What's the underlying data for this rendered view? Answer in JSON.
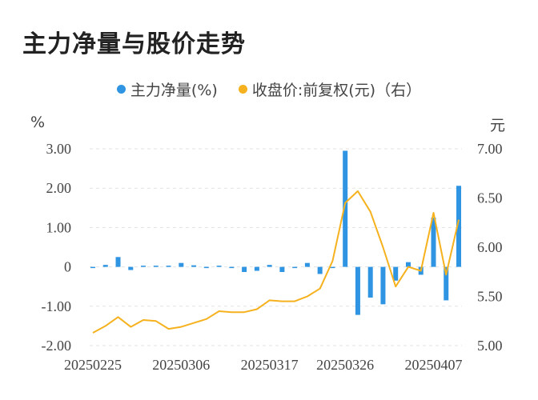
{
  "title": "主力净量与股价走势",
  "legend": [
    {
      "label": "主力净量(%)",
      "color": "#2f95e3"
    },
    {
      "label": "收盘价:前复权(元)（右）",
      "color": "#f5b21e"
    }
  ],
  "y_left_unit": "%",
  "y_right_unit": "元",
  "chart_data": {
    "type": "bar",
    "x_tick_labels": [
      "20250225",
      "20250306",
      "20250317",
      "20250326",
      "20250407"
    ],
    "x_tick_indices": [
      0,
      7,
      14,
      20,
      27
    ],
    "y_left_ticks": [
      "3.00",
      "2.00",
      "1.00",
      "0",
      "-1.00",
      "-2.00"
    ],
    "y_right_ticks": [
      "7.00",
      "6.50",
      "6.00",
      "5.50",
      "5.00"
    ],
    "ylim_left": [
      -2,
      3
    ],
    "ylim_right": [
      5,
      7
    ],
    "grid": true,
    "legend_position": "top",
    "series": [
      {
        "name": "主力净量(%)",
        "type": "bar",
        "axis": "left",
        "values": [
          -0.03,
          0.05,
          0.25,
          -0.08,
          0.0,
          0.02,
          0.01,
          0.1,
          0.04,
          -0.02,
          0.03,
          -0.02,
          -0.13,
          -0.1,
          0.05,
          -0.13,
          -0.02,
          0.1,
          -0.18,
          -0.03,
          2.95,
          -1.22,
          -0.78,
          -0.95,
          -0.35,
          0.12,
          -0.2,
          1.25,
          -0.85,
          2.06
        ]
      },
      {
        "name": "收盘价:前复权(元)（右）",
        "type": "line",
        "axis": "right",
        "values": [
          5.13,
          5.2,
          5.29,
          5.19,
          5.26,
          5.25,
          5.17,
          5.19,
          5.23,
          5.27,
          5.35,
          5.34,
          5.34,
          5.37,
          5.46,
          5.45,
          5.45,
          5.5,
          5.58,
          5.86,
          6.45,
          6.57,
          6.36,
          6.0,
          5.6,
          5.8,
          5.76,
          6.35,
          5.72,
          6.28
        ]
      }
    ]
  }
}
